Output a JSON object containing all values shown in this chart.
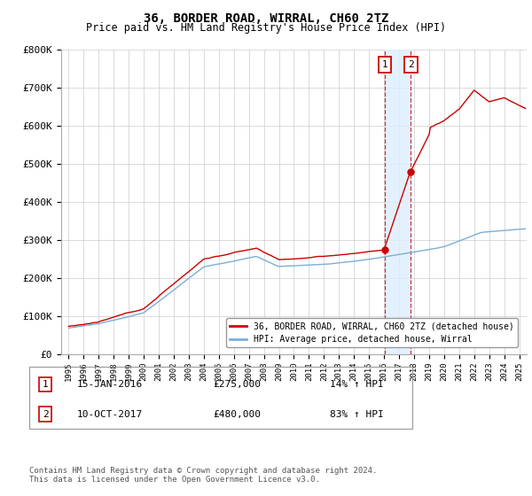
{
  "title": "36, BORDER ROAD, WIRRAL, CH60 2TZ",
  "subtitle": "Price paid vs. HM Land Registry's House Price Index (HPI)",
  "sale1_date": 2016.04,
  "sale1_price": 275000,
  "sale1_label": "15-JAN-2016",
  "sale1_hpi": "14% ↑ HPI",
  "sale2_date": 2017.78,
  "sale2_price": 480000,
  "sale2_label": "10-OCT-2017",
  "sale2_hpi": "83% ↑ HPI",
  "hpi_color": "#7bafd4",
  "price_color": "#cc0000",
  "shade_color": "#ddeeff",
  "shade_x1": 2016.04,
  "shade_x2": 2017.78,
  "ylim_min": 0,
  "ylim_max": 800000,
  "xlim_min": 1994.5,
  "xlim_max": 2025.5,
  "legend_label1": "36, BORDER ROAD, WIRRAL, CH60 2TZ (detached house)",
  "legend_label2": "HPI: Average price, detached house, Wirral",
  "footnote": "Contains HM Land Registry data © Crown copyright and database right 2024.\nThis data is licensed under the Open Government Licence v3.0.",
  "table_row1_num": "1",
  "table_row1_date": "15-JAN-2016",
  "table_row1_price": "£275,000",
  "table_row1_hpi": "14% ↑ HPI",
  "table_row2_num": "2",
  "table_row2_date": "10-OCT-2017",
  "table_row2_price": "£480,000",
  "table_row2_hpi": "83% ↑ HPI"
}
